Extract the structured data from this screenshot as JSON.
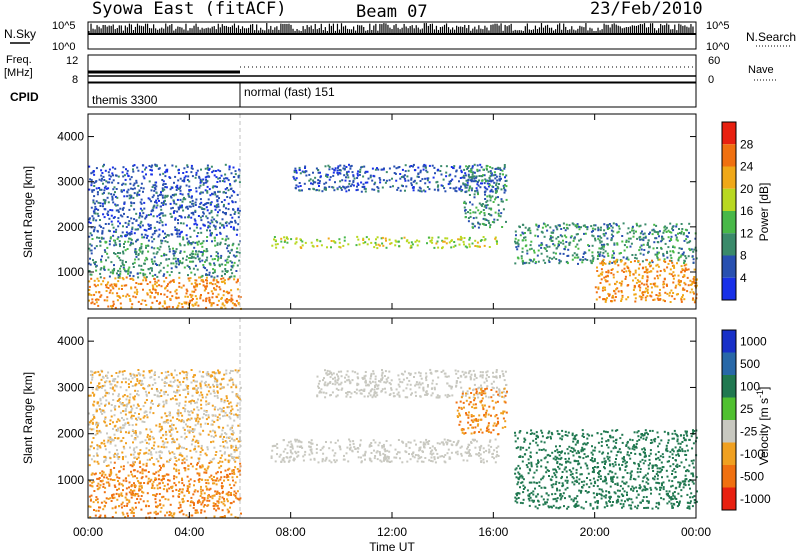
{
  "header": {
    "title_left": "Syowa East (fitACF)",
    "title_center": "Beam 07",
    "title_right": "23/Feb/2010"
  },
  "strips": {
    "nsky_label": "N.Sky",
    "nsky_ticks": [
      "10^5",
      "10^0"
    ],
    "nsearch_label": "N.Search",
    "nsearch_ticks": [
      "10^5",
      "10^0"
    ],
    "freq_label": "Freq.",
    "freq_unit": "[MHz]",
    "freq_ticks": [
      "12",
      "8"
    ],
    "nave_label": "Nave",
    "nave_ticks": [
      "60",
      "0"
    ],
    "cpid_label": "CPID",
    "cpid_modes": [
      {
        "label": "themis 3300",
        "start_hour": 0,
        "end_hour": 6
      },
      {
        "label": "normal (fast) 151",
        "start_hour": 6,
        "end_hour": 24
      }
    ]
  },
  "chart_data": [
    {
      "type": "heatmap",
      "title": "",
      "quantity": "Power",
      "ylabel": "Slant Range [km]",
      "xlabel": "",
      "xlim": [
        0,
        24
      ],
      "ylim": [
        180,
        4500
      ],
      "yticks": [
        "1000",
        "2000",
        "3000",
        "4000"
      ],
      "colorbar_label": "Power [dB]",
      "colorbar_ticks": [
        "4",
        "8",
        "12",
        "16",
        "20",
        "24",
        "28"
      ],
      "colorbar_colors": [
        "#1830e8",
        "#2850b0",
        "#3a8a6a",
        "#48b848",
        "#b8d820",
        "#f0a818",
        "#f07010",
        "#e82010"
      ],
      "regions": [
        {
          "x": [
            0,
            6
          ],
          "y": [
            200,
            900
          ],
          "level": 24
        },
        {
          "x": [
            0,
            6
          ],
          "y": [
            900,
            1800
          ],
          "level": 10
        },
        {
          "x": [
            0,
            6
          ],
          "y": [
            1800,
            3400
          ],
          "level": 6
        },
        {
          "x": [
            7.2,
            16.2
          ],
          "y": [
            1550,
            1800
          ],
          "level": 18
        },
        {
          "x": [
            8,
            16.5
          ],
          "y": [
            2800,
            3400
          ],
          "level": 6
        },
        {
          "x": [
            14.8,
            16.5
          ],
          "y": [
            2000,
            3400
          ],
          "level": 10
        },
        {
          "x": [
            16.8,
            24
          ],
          "y": [
            1200,
            2100
          ],
          "level": 10
        },
        {
          "x": [
            20,
            24
          ],
          "y": [
            350,
            1300
          ],
          "level": 24
        }
      ]
    },
    {
      "type": "heatmap",
      "title": "",
      "quantity": "Velocity",
      "ylabel": "Slant Range [km]",
      "xlabel": "Time UT",
      "xlim": [
        0,
        24
      ],
      "ylim": [
        180,
        4500
      ],
      "yticks": [
        "1000",
        "2000",
        "3000",
        "4000"
      ],
      "xticks": [
        "00:00",
        "04:00",
        "08:00",
        "12:00",
        "16:00",
        "20:00",
        "00:00"
      ],
      "colorbar_label": "Velocity [m s",
      "colorbar_exponent": "-1",
      "colorbar_ticks": [
        "1000",
        "500",
        "100",
        "25",
        "-25",
        "-100",
        "-500",
        "-1000"
      ],
      "colorbar_colors": [
        "#1830c8",
        "#2868a8",
        "#207850",
        "#50c030",
        "#c8c8c0",
        "#f0a020",
        "#f07010",
        "#e82010"
      ],
      "regions": [
        {
          "x": [
            0,
            6
          ],
          "y": [
            200,
            1400
          ],
          "level": -100
        },
        {
          "x": [
            0,
            6
          ],
          "y": [
            1400,
            3400
          ],
          "level": -25
        },
        {
          "x": [
            7.2,
            16.2
          ],
          "y": [
            1400,
            1900
          ],
          "level": 0
        },
        {
          "x": [
            9,
            16.5
          ],
          "y": [
            2800,
            3400
          ],
          "level": 0
        },
        {
          "x": [
            14.5,
            16.5
          ],
          "y": [
            2000,
            3000
          ],
          "level": -100
        },
        {
          "x": [
            16.8,
            24
          ],
          "y": [
            400,
            2100
          ],
          "level": 300
        }
      ]
    }
  ],
  "colors": {
    "frame": "#000000",
    "divider": "#c0c0c0"
  }
}
